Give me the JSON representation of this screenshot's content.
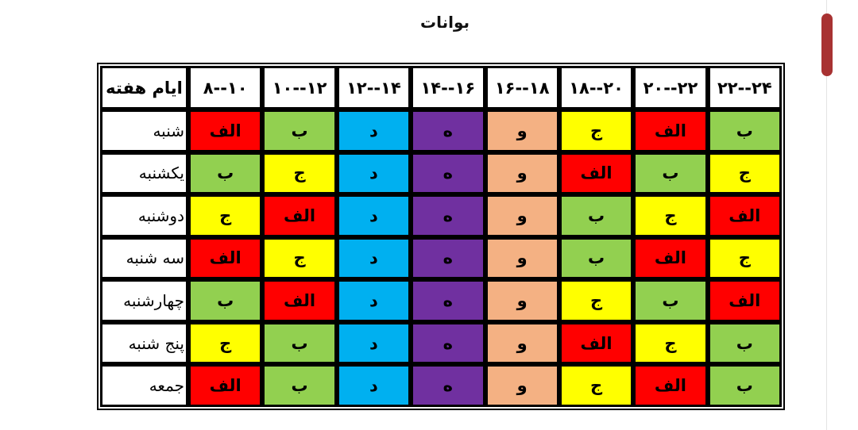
{
  "title": "بوانات",
  "colors": {
    "الف": "#ff0000",
    "ب": "#92d050",
    "ج": "#ffff00",
    "د": "#00b0f0",
    "ه": "#7030a0",
    "و": "#f4b183"
  },
  "header": [
    "ایام هفته",
    "۸--۱۰",
    "۱۰--۱۲",
    "۱۲--۱۴",
    "۱۴--۱۶",
    "۱۶--۱۸",
    "۱۸--۲۰",
    "۲۰--۲۲",
    "۲۲--۲۴"
  ],
  "rows": [
    {
      "day": "شنبه",
      "cells": [
        "الف",
        "ب",
        "د",
        "ه",
        "و",
        "ج",
        "الف",
        "ب"
      ]
    },
    {
      "day": "یکشنبه",
      "cells": [
        "ب",
        "ج",
        "د",
        "ه",
        "و",
        "الف",
        "ب",
        "ج"
      ]
    },
    {
      "day": "دوشنبه",
      "cells": [
        "ج",
        "الف",
        "د",
        "ه",
        "و",
        "ب",
        "ج",
        "الف"
      ]
    },
    {
      "day": "سه شنبه",
      "cells": [
        "الف",
        "ج",
        "د",
        "ه",
        "و",
        "ب",
        "الف",
        "ج"
      ]
    },
    {
      "day": "چهارشنبه",
      "cells": [
        "ب",
        "الف",
        "د",
        "ه",
        "و",
        "ج",
        "ب",
        "الف"
      ]
    },
    {
      "day": "پنج شنبه",
      "cells": [
        "ج",
        "ب",
        "د",
        "ه",
        "و",
        "الف",
        "ج",
        "ب"
      ]
    },
    {
      "day": "جمعه",
      "cells": [
        "الف",
        "ب",
        "د",
        "ه",
        "و",
        "ج",
        "الف",
        "ب"
      ]
    }
  ]
}
